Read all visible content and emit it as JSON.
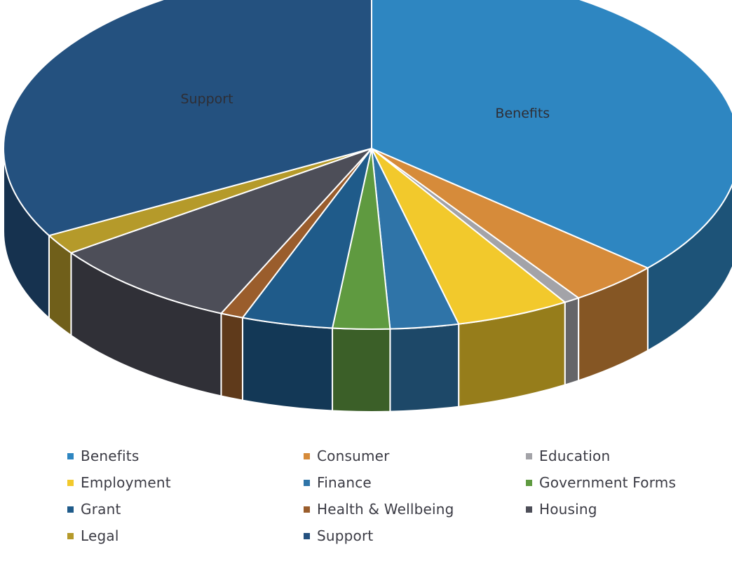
{
  "chart_data": {
    "type": "pie",
    "title": "",
    "categories": [
      "Benefits",
      "Consumer",
      "Education",
      "Employment",
      "Finance",
      "Government Forms",
      "Grant",
      "Health & Wellbeing",
      "Housing",
      "Legal",
      "Support"
    ],
    "values": [
      36.5,
      4.0,
      0.7,
      5.0,
      3.0,
      2.5,
      4.0,
      1.0,
      8.5,
      1.8,
      33.0
    ],
    "unit": "percent",
    "colors": [
      "#2e86c1",
      "#d68b3a",
      "#a3a3a8",
      "#f2c92c",
      "#2f74a8",
      "#5f9a40",
      "#1f5b8a",
      "#9a5d2c",
      "#4d4e58",
      "#b59a2a",
      "#24517f"
    ],
    "data_labels": [
      {
        "category": "Benefits",
        "text": "Benefits"
      },
      {
        "category": "Support",
        "text": "Support"
      }
    ],
    "legend_position": "bottom",
    "style": "3d-pie"
  },
  "legend": {
    "items": [
      {
        "label": "Benefits",
        "color": "#2e86c1"
      },
      {
        "label": "Consumer",
        "color": "#d68b3a"
      },
      {
        "label": "Education",
        "color": "#a3a3a8"
      },
      {
        "label": "Employment",
        "color": "#f2c92c"
      },
      {
        "label": "Finance",
        "color": "#2f74a8"
      },
      {
        "label": "Government Forms",
        "color": "#5f9a40"
      },
      {
        "label": "Grant",
        "color": "#1f5b8a"
      },
      {
        "label": "Health & Wellbeing",
        "color": "#9a5d2c"
      },
      {
        "label": "Housing",
        "color": "#4d4e58"
      },
      {
        "label": "Legal",
        "color": "#b59a2a"
      },
      {
        "label": "Support",
        "color": "#24517f"
      }
    ]
  }
}
